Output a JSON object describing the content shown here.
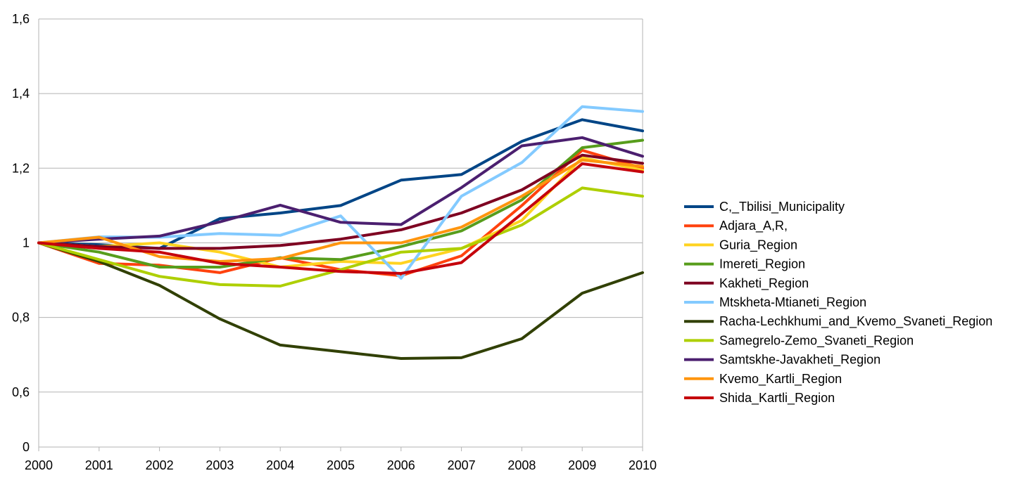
{
  "chart_data": {
    "type": "line",
    "title": "",
    "xlabel": "",
    "ylabel": "",
    "x": [
      "2000",
      "2001",
      "2002",
      "2003",
      "2004",
      "2005",
      "2006",
      "2007",
      "2008",
      "2009",
      "2010"
    ],
    "y_ticks": [
      {
        "value": 0,
        "label": "0"
      },
      {
        "value": 0.6,
        "label": "0,6"
      },
      {
        "value": 0.8,
        "label": "0,8"
      },
      {
        "value": 1.0,
        "label": "1"
      },
      {
        "value": 1.2,
        "label": "1,2"
      },
      {
        "value": 1.4,
        "label": "1,4"
      },
      {
        "value": 1.6,
        "label": "1,6"
      }
    ],
    "ylim": [
      0,
      1.6
    ],
    "axis_break": {
      "from": 0,
      "to": 0.56
    },
    "grid": true,
    "legend_position": "right",
    "series": [
      {
        "name": "C,_Tbilisi_Municipality",
        "color": "#004586",
        "values": [
          1.0,
          0.995,
          0.985,
          1.065,
          1.08,
          1.1,
          1.168,
          1.183,
          1.272,
          1.33,
          1.3
        ]
      },
      {
        "name": "Adjara_A,R,",
        "color": "#ff420e",
        "values": [
          1.0,
          0.945,
          0.94,
          0.92,
          0.96,
          0.928,
          0.912,
          0.965,
          1.1,
          1.248,
          1.2
        ]
      },
      {
        "name": "Guria_Region",
        "color": "#ffd320",
        "values": [
          1.0,
          0.99,
          1.0,
          0.975,
          0.935,
          0.95,
          0.945,
          0.985,
          1.06,
          1.228,
          1.195
        ]
      },
      {
        "name": "Imereti_Region",
        "color": "#579d1c",
        "values": [
          1.0,
          0.975,
          0.935,
          0.935,
          0.96,
          0.955,
          0.99,
          1.032,
          1.115,
          1.255,
          1.275
        ]
      },
      {
        "name": "Kakheti_Region",
        "color": "#7e0021",
        "values": [
          1.0,
          0.99,
          0.985,
          0.985,
          0.993,
          1.01,
          1.035,
          1.08,
          1.142,
          1.235,
          1.213
        ]
      },
      {
        "name": "Mtskheta-Mtianeti_Region",
        "color": "#83caff",
        "values": [
          1.0,
          1.016,
          1.015,
          1.025,
          1.02,
          1.072,
          0.905,
          1.125,
          1.215,
          1.365,
          1.352
        ]
      },
      {
        "name": "Racha-Lechkhumi_and_Kvemo_Svaneti_Region",
        "color": "#314004",
        "values": [
          1.0,
          0.95,
          0.886,
          0.796,
          0.726,
          0.708,
          0.69,
          0.692,
          0.743,
          0.865,
          0.92
        ]
      },
      {
        "name": "Samegrelo-Zemo_Svaneti_Region",
        "color": "#aecf00",
        "values": [
          1.0,
          0.955,
          0.91,
          0.888,
          0.884,
          0.928,
          0.975,
          0.985,
          1.048,
          1.147,
          1.125
        ]
      },
      {
        "name": "Samtskhe-Javakheti_Region",
        "color": "#4b1f6f",
        "values": [
          1.0,
          1.01,
          1.018,
          1.056,
          1.101,
          1.055,
          1.049,
          1.148,
          1.26,
          1.282,
          1.232
        ]
      },
      {
        "name": "Kvemo_Kartli_Region",
        "color": "#ff950e",
        "values": [
          1.0,
          1.015,
          0.963,
          0.95,
          0.958,
          1.0,
          1.0,
          1.042,
          1.125,
          1.222,
          1.205
        ]
      },
      {
        "name": "Shida_Kartli_Region",
        "color": "#c5000b",
        "values": [
          1.0,
          0.985,
          0.975,
          0.945,
          0.935,
          0.923,
          0.918,
          0.947,
          1.078,
          1.212,
          1.19
        ]
      }
    ]
  }
}
